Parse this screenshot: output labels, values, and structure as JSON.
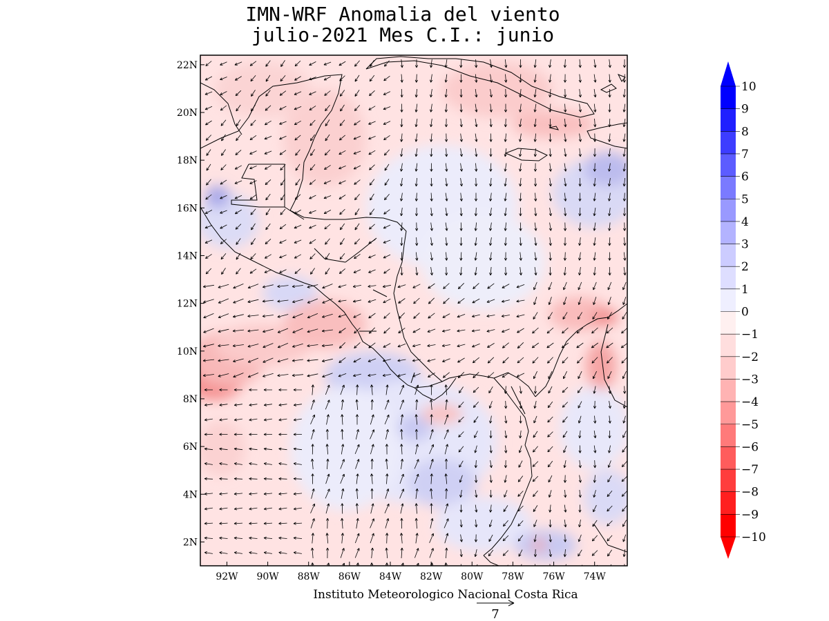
{
  "title": {
    "line1": "IMN-WRF Anomalia del viento",
    "line2": "julio-2021 Mes C.I.: junio"
  },
  "map": {
    "lat_ticks": [
      {
        "value": 2,
        "label": "2N"
      },
      {
        "value": 4,
        "label": "4N"
      },
      {
        "value": 6,
        "label": "6N"
      },
      {
        "value": 8,
        "label": "8N"
      },
      {
        "value": 10,
        "label": "10N"
      },
      {
        "value": 12,
        "label": "12N"
      },
      {
        "value": 14,
        "label": "14N"
      },
      {
        "value": 16,
        "label": "16N"
      },
      {
        "value": 18,
        "label": "18N"
      },
      {
        "value": 20,
        "label": "20N"
      },
      {
        "value": 22,
        "label": "22N"
      }
    ],
    "lon_ticks": [
      {
        "value": -92,
        "label": "92W"
      },
      {
        "value": -90,
        "label": "90W"
      },
      {
        "value": -88,
        "label": "88W"
      },
      {
        "value": -86,
        "label": "86W"
      },
      {
        "value": -84,
        "label": "84W"
      },
      {
        "value": -82,
        "label": "82W"
      },
      {
        "value": -80,
        "label": "80W"
      },
      {
        "value": -78,
        "label": "78W"
      },
      {
        "value": -76,
        "label": "76W"
      },
      {
        "value": -74,
        "label": "74W"
      }
    ],
    "lon_range": [
      -93.3,
      -72.4
    ],
    "lat_range": [
      1.0,
      22.4
    ],
    "colors": {
      "frame": "#000000",
      "coast": "#000000",
      "arrow": "#000000"
    }
  },
  "colorbar": {
    "labels": [
      "10",
      "9",
      "8",
      "7",
      "6",
      "5",
      "4",
      "3",
      "2",
      "1",
      "0",
      "-1",
      "-2",
      "-3",
      "-4",
      "-5",
      "-6",
      "-7",
      "-8",
      "-9",
      "-10"
    ],
    "colors": [
      "#0000ff",
      "#1f1fff",
      "#3d3dff",
      "#5c5cff",
      "#7a7aff",
      "#9999ff",
      "#b3b3ff",
      "#ccccff",
      "#dedeff",
      "#efefff",
      "#fff0f0",
      "#ffdede",
      "#ffcccc",
      "#ffb3b3",
      "#ff9999",
      "#ff7a7a",
      "#ff5c5c",
      "#ff3d3d",
      "#ff1f1f",
      "#ff0000"
    ]
  },
  "reference_vector": {
    "label": "7"
  },
  "credit": "Instituto Meteorologico Nacional Costa Rica"
}
